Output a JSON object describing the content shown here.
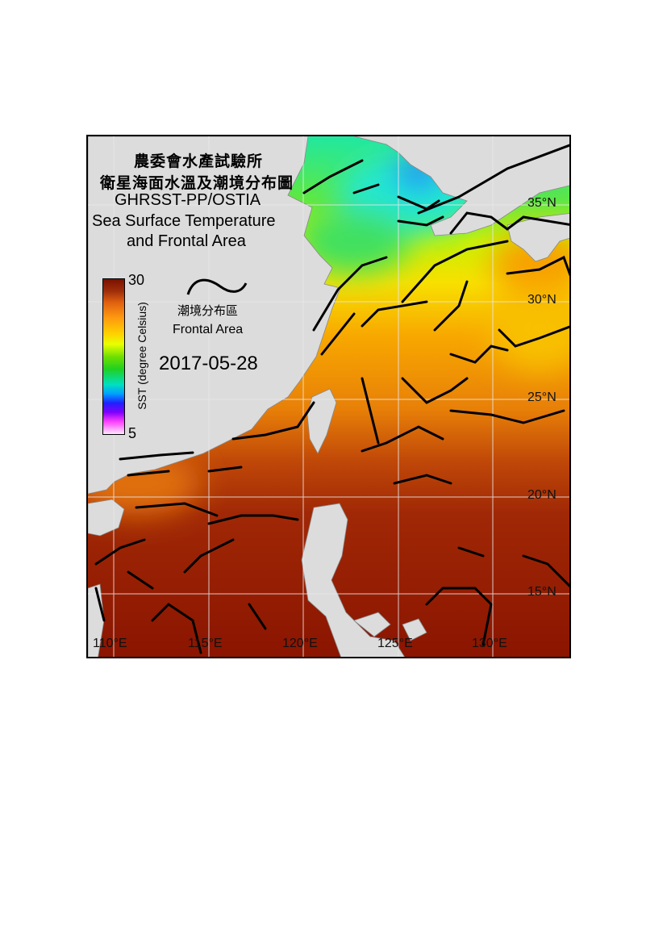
{
  "title": {
    "line1": "農委會水產試驗所",
    "line2": "衛星海面水溫及潮境分布圖",
    "line3": "GHRSST-PP/OSTIA",
    "line4": "Sea Surface Temperature",
    "line5": "and Frontal Area"
  },
  "colorbar": {
    "max": "30",
    "min": "5",
    "label": "SST (degree Celsius)",
    "colors": [
      "#7a1000",
      "#e06010",
      "#ffd000",
      "#70e000",
      "#00e0c0",
      "#2020ff",
      "#ff40ff",
      "#ffe8ff"
    ]
  },
  "legend": {
    "cn": "潮境分布區",
    "en": "Frontal Area"
  },
  "date": "2017-05-28",
  "latitudes": [
    "35°N",
    "30°N",
    "25°N",
    "20°N",
    "15°N"
  ],
  "longitudes": [
    "110°E",
    "115°E",
    "120°E",
    "125°E",
    "130°E"
  ],
  "land_color": "#dcdcdc",
  "front_color": "#000000"
}
